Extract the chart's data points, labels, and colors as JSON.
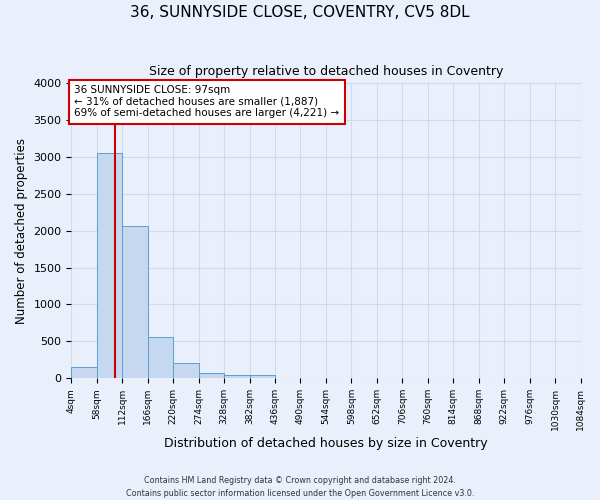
{
  "title": "36, SUNNYSIDE CLOSE, COVENTRY, CV5 8DL",
  "subtitle": "Size of property relative to detached houses in Coventry",
  "xlabel": "Distribution of detached houses by size in Coventry",
  "ylabel": "Number of detached properties",
  "bin_edges": [
    4,
    58,
    112,
    166,
    220,
    274,
    328,
    382,
    436,
    490,
    544,
    598,
    652,
    706,
    760,
    814,
    868,
    922,
    976,
    1030,
    1084
  ],
  "counts": [
    150,
    3060,
    2060,
    560,
    210,
    70,
    50,
    40,
    0,
    0,
    0,
    0,
    0,
    0,
    0,
    0,
    0,
    0,
    0,
    0
  ],
  "bar_color": "#c5d8f0",
  "bar_edge_color": "#5a9fd4",
  "property_size": 97,
  "vline_color": "#cc0000",
  "annotation_line1": "36 SUNNYSIDE CLOSE: 97sqm",
  "annotation_line2": "← 31% of detached houses are smaller (1,887)",
  "annotation_line3": "69% of semi-detached houses are larger (4,221) →",
  "annotation_box_color": "#ffffff",
  "annotation_box_edge": "#cc0000",
  "ylim": [
    0,
    4000
  ],
  "background_color": "#eaf0fb",
  "grid_color": "#d0daea",
  "footer_line1": "Contains HM Land Registry data © Crown copyright and database right 2024.",
  "footer_line2": "Contains public sector information licensed under the Open Government Licence v3.0.",
  "tick_labels": [
    "4sqm",
    "58sqm",
    "112sqm",
    "166sqm",
    "220sqm",
    "274sqm",
    "328sqm",
    "382sqm",
    "436sqm",
    "490sqm",
    "544sqm",
    "598sqm",
    "652sqm",
    "706sqm",
    "760sqm",
    "814sqm",
    "868sqm",
    "922sqm",
    "976sqm",
    "1030sqm",
    "1084sqm"
  ]
}
